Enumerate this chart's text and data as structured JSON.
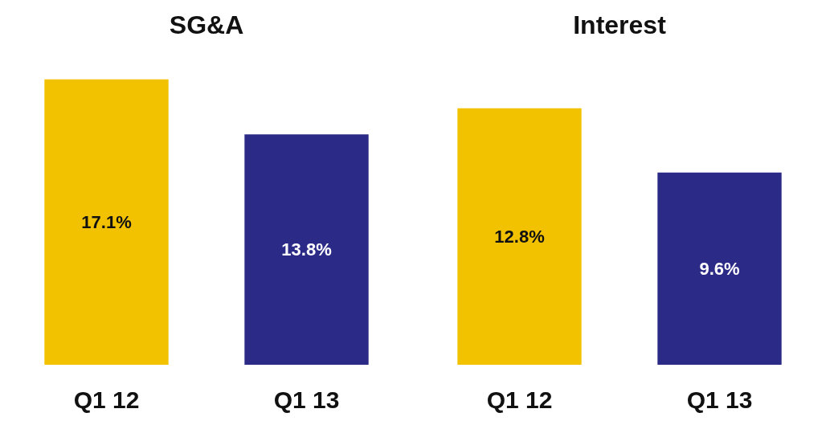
{
  "chart_data": [
    {
      "type": "bar",
      "title": "SG&A",
      "categories": [
        "Q1 12",
        "Q1 13"
      ],
      "values": [
        17.1,
        13.8
      ],
      "colors": [
        "#f2c200",
        "#2b2b87"
      ],
      "value_labels": [
        "17.1%",
        "13.8%"
      ]
    },
    {
      "type": "bar",
      "title": "Interest",
      "categories": [
        "Q1 12",
        "Q1 13"
      ],
      "values": [
        12.8,
        9.6
      ],
      "colors": [
        "#f2c200",
        "#2b2b87"
      ],
      "value_labels": [
        "12.8%",
        "9.6%"
      ]
    }
  ]
}
